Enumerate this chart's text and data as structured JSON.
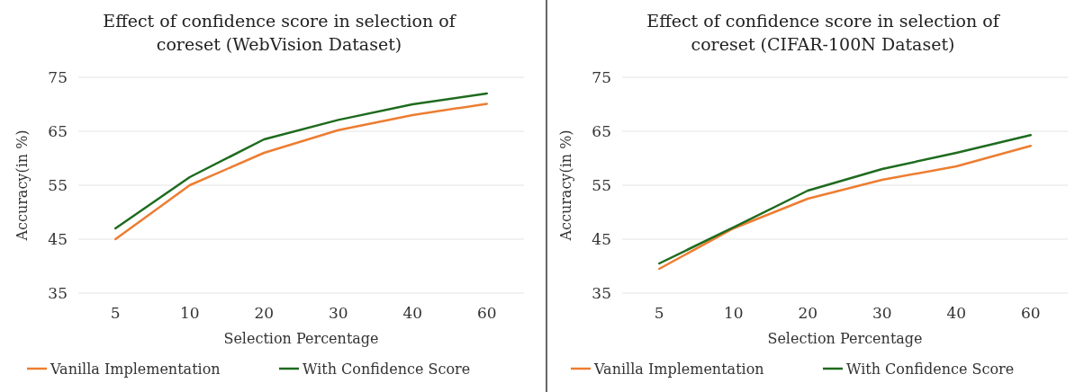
{
  "chart_data": [
    {
      "type": "line",
      "title": "Effect of confidence score in selection of coreset (WebVision Dataset)",
      "xlabel": "Selection Percentage",
      "ylabel": "Accuracy(in %)",
      "categories": [
        "5",
        "10",
        "20",
        "30",
        "40",
        "60"
      ],
      "ylim": [
        35,
        75
      ],
      "yticks": [
        35,
        45,
        55,
        65,
        75
      ],
      "grid": "y",
      "legend": "bottom",
      "marker": "none",
      "series": [
        {
          "name": "Vanilla Implementation",
          "color": "#ed7d31",
          "values": [
            45,
            55,
            61,
            65.2,
            68,
            70.1
          ]
        },
        {
          "name": "With Confidence Score",
          "color": "#1e6b1e",
          "values": [
            47,
            56.5,
            63.5,
            67.1,
            70,
            72
          ]
        }
      ]
    },
    {
      "type": "line",
      "title": "Effect of confidence score in selection of coreset (CIFAR-100N Dataset)",
      "xlabel": "Selection Percentage",
      "ylabel": "Accuracy(in %)",
      "categories": [
        "5",
        "10",
        "20",
        "30",
        "40",
        "60"
      ],
      "ylim": [
        35,
        75
      ],
      "yticks": [
        35,
        45,
        55,
        65,
        75
      ],
      "grid": "y",
      "legend": "bottom",
      "marker": "none",
      "series": [
        {
          "name": "Vanilla Implementation",
          "color": "#ed7d31",
          "values": [
            39.5,
            47,
            52.5,
            56,
            58.5,
            62.3
          ]
        },
        {
          "name": "With Confidence Score",
          "color": "#1e6b1e",
          "values": [
            40.5,
            47.2,
            54,
            58,
            61,
            64.3
          ]
        }
      ]
    }
  ]
}
